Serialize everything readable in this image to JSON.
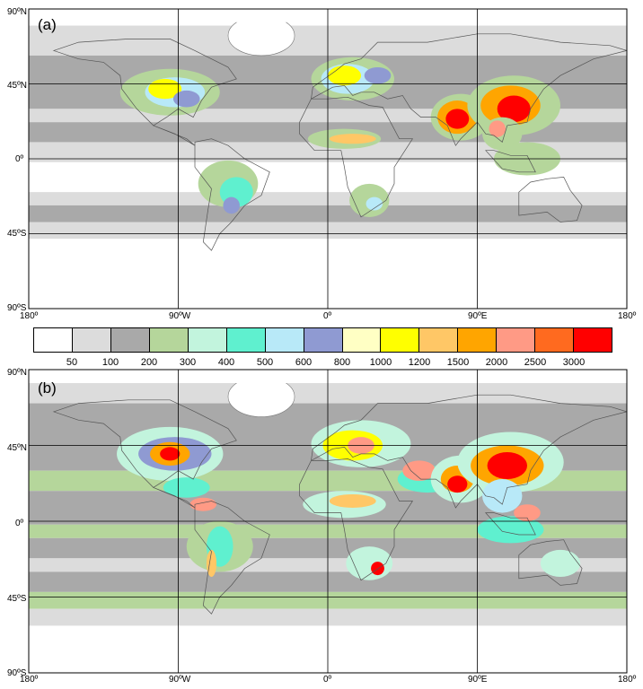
{
  "panels": [
    {
      "letter": "(a)"
    },
    {
      "letter": "(b)"
    }
  ],
  "lat_labels": [
    "90ºN",
    "45ºN",
    "0º",
    "45ºS",
    "90ºS"
  ],
  "lon_labels": [
    "180º",
    "90ºW",
    "0º",
    "90ºE",
    "180º"
  ],
  "colorbar": {
    "colors": [
      "#ffffff",
      "#dcdcdc",
      "#a9a9a9",
      "#b5d69b",
      "#c2f4dd",
      "#5ff0cf",
      "#b8e9f8",
      "#8f9ad2",
      "#ffffc4",
      "#ffff00",
      "#ffc766",
      "#ffa500",
      "#ff9a85",
      "#ff6a1f",
      "#ff0000"
    ],
    "ticks": [
      "50",
      "100",
      "200",
      "300",
      "400",
      "500",
      "600",
      "800",
      "1000",
      "1200",
      "1500",
      "2000",
      "2500",
      "3000"
    ]
  },
  "chart_data": {
    "type": "heatmap",
    "projection": "equirectangular",
    "lon_range": [
      -180,
      180
    ],
    "lat_range": [
      -90,
      90
    ],
    "grid_lines_lon": [
      -90,
      0,
      90
    ],
    "grid_lines_lat": [
      -45,
      0,
      45
    ],
    "panels": [
      "(a)",
      "(b)"
    ]
  }
}
